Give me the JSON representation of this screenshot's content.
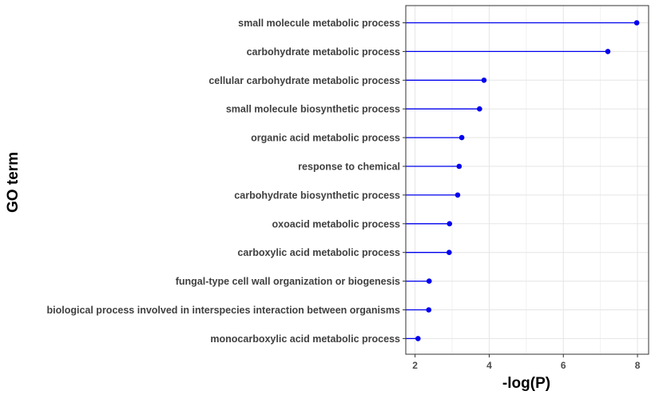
{
  "chart_data": {
    "type": "lollipop",
    "xlabel": "-log(P)",
    "ylabel": "GO term",
    "xlim": [
      1.75,
      8.3
    ],
    "xticks": [
      2,
      4,
      6,
      8
    ],
    "grid": true,
    "legend": "none",
    "colors": {
      "series": "#0000ee",
      "grid_major": "#e5e5e5",
      "grid_minor": "#f2f2f2",
      "panel_border": "#333333"
    },
    "categories": [
      "small molecule metabolic process",
      "carbohydrate metabolic process",
      "cellular carbohydrate metabolic process",
      "small molecule biosynthetic process",
      "organic acid metabolic process",
      "response to chemical",
      "carbohydrate biosynthetic process",
      "oxoacid metabolic process",
      "carboxylic acid metabolic process",
      "fungal-type cell wall organization or biogenesis",
      "biological process involved in interspecies interaction between organisms",
      "monocarboxylic acid metabolic process"
    ],
    "values": [
      7.98,
      7.2,
      3.86,
      3.74,
      3.26,
      3.19,
      3.15,
      2.93,
      2.92,
      2.38,
      2.37,
      2.08
    ]
  }
}
